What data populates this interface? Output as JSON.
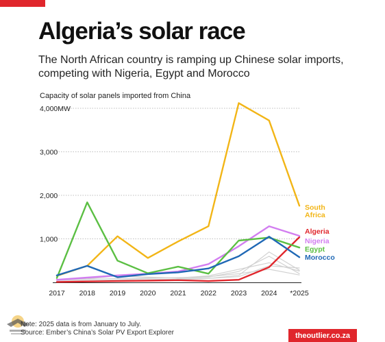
{
  "header": {
    "title": "Algeria’s solar race",
    "subtitle": "The North African country is ramping up Chinese solar imports, competing with Nigeria, Egypt and Morocco"
  },
  "footer": {
    "note": "Note: 2025 data is from January to July.",
    "source": "Source: Ember’s China’s Solar PV Export Explorer",
    "brand": "theoutlier.co.za"
  },
  "colors": {
    "accent": "#e0262c",
    "south_africa": "#f2b516",
    "algeria": "#e0262c",
    "nigeria": "#d27ef0",
    "egypt": "#5bbf43",
    "morocco": "#1f68b5",
    "other": "#d2d2d2"
  },
  "chart_data": {
    "type": "line",
    "title": "Capacity of solar panels imported from China",
    "xlabel": "",
    "ylabel": "",
    "categories": [
      "2017",
      "2018",
      "2019",
      "2020",
      "2021",
      "2022",
      "2023",
      "2024",
      "*2025"
    ],
    "ylim": [
      0,
      4000
    ],
    "yticks": [
      {
        "value": 1000,
        "label": "1,000"
      },
      {
        "value": 2000,
        "label": "2,000"
      },
      {
        "value": 3000,
        "label": "3,000"
      },
      {
        "value": 4000,
        "label": "4,000MW"
      }
    ],
    "grid": true,
    "legend": "inline labels at line ends (right)",
    "series": [
      {
        "name": "",
        "color": "#d2d2d2",
        "values": [
          50,
          70,
          90,
          100,
          110,
          130,
          200,
          300,
          170
        ]
      },
      {
        "name": "",
        "color": "#d2d2d2",
        "values": [
          30,
          40,
          60,
          80,
          70,
          90,
          160,
          700,
          280
        ]
      },
      {
        "name": "",
        "color": "#d2d2d2",
        "values": [
          20,
          30,
          40,
          50,
          80,
          120,
          250,
          600,
          200
        ]
      },
      {
        "name": "",
        "color": "#d2d2d2",
        "values": [
          60,
          80,
          150,
          120,
          100,
          150,
          300,
          450,
          260
        ]
      },
      {
        "name": "",
        "color": "#d2d2d2",
        "values": [
          10,
          20,
          30,
          40,
          60,
          90,
          130,
          380,
          330
        ]
      },
      {
        "name": "South Africa",
        "color": "#f2b516",
        "values": [
          150,
          380,
          1060,
          560,
          940,
          1290,
          4120,
          3720,
          1760
        ]
      },
      {
        "name": "Algeria",
        "color": "#e0262c",
        "values": [
          10,
          20,
          30,
          40,
          50,
          30,
          60,
          350,
          1040
        ]
      },
      {
        "name": "Nigeria",
        "color": "#d27ef0",
        "values": [
          60,
          110,
          160,
          200,
          250,
          420,
          830,
          1290,
          1070
        ]
      },
      {
        "name": "Egypt",
        "color": "#5bbf43",
        "values": [
          100,
          1840,
          500,
          210,
          360,
          200,
          960,
          1030,
          800
        ]
      },
      {
        "name": "Morocco",
        "color": "#1f68b5",
        "values": [
          160,
          380,
          120,
          190,
          230,
          320,
          600,
          1050,
          580
        ]
      }
    ],
    "series_labels": [
      {
        "series": "South Africa",
        "lines": [
          "South",
          "Africa"
        ]
      },
      {
        "series": "Algeria",
        "lines": [
          "Algeria"
        ]
      },
      {
        "series": "Nigeria",
        "lines": [
          "Nigeria"
        ]
      },
      {
        "series": "Egypt",
        "lines": [
          "Egypt"
        ]
      },
      {
        "series": "Morocco",
        "lines": [
          "Morocco"
        ]
      }
    ]
  }
}
